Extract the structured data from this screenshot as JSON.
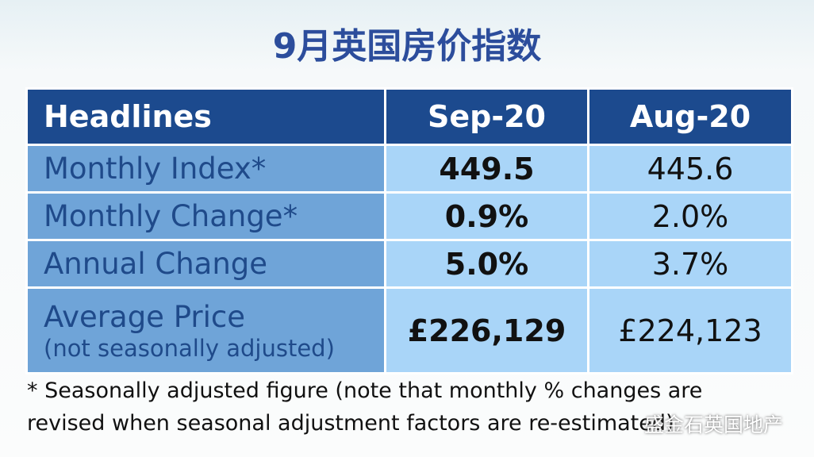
{
  "title": "9月英国房价指数",
  "table": {
    "header": [
      "Headlines",
      "Sep-20",
      "Aug-20"
    ],
    "rows": [
      {
        "label": "Monthly Index*",
        "values": [
          "449.5",
          "445.6"
        ]
      },
      {
        "label": "Monthly Change*",
        "values": [
          "0.9%",
          "2.0%"
        ]
      },
      {
        "label": "Annual Change",
        "values": [
          "5.0%",
          "3.7%"
        ]
      },
      {
        "label": "Average Price",
        "sublabel": "(not seasonally adjusted)",
        "values": [
          "£226,129",
          "£224,123"
        ]
      }
    ]
  },
  "footnote": [
    "* Seasonally adjusted figure (note that monthly % changes are",
    "revised when seasonal adjustment factors are re-estimated)"
  ],
  "watermark": "盛金石英国地产"
}
